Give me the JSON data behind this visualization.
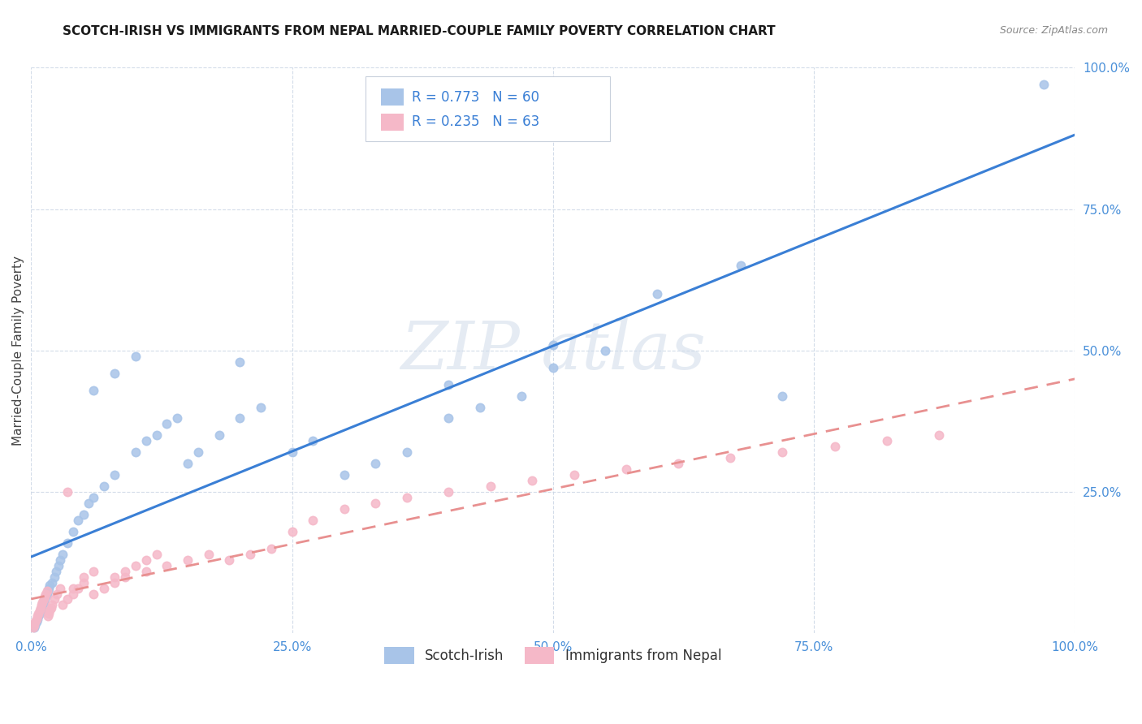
{
  "title": "SCOTCH-IRISH VS IMMIGRANTS FROM NEPAL MARRIED-COUPLE FAMILY POVERTY CORRELATION CHART",
  "source": "Source: ZipAtlas.com",
  "ylabel": "Married-Couple Family Poverty",
  "series1_color": "#a8c4e8",
  "series2_color": "#f5b8c8",
  "trendline1_color": "#3a7fd5",
  "trendline2_color": "#e89090",
  "legend1_text": "R = 0.773   N = 60",
  "legend2_text": "R = 0.235   N = 63",
  "label1": "Scotch-Irish",
  "label2": "Immigrants from Nepal",
  "scotch_irish_x": [
    0.3,
    0.4,
    0.5,
    0.6,
    0.7,
    0.8,
    0.9,
    1.0,
    1.1,
    1.2,
    1.3,
    1.4,
    1.5,
    1.6,
    1.7,
    1.8,
    2.0,
    2.2,
    2.4,
    2.6,
    2.8,
    3.0,
    3.5,
    4.0,
    4.5,
    5.0,
    5.5,
    6.0,
    7.0,
    8.0,
    10.0,
    11.0,
    12.0,
    13.0,
    14.0,
    15.0,
    16.0,
    18.0,
    20.0,
    22.0,
    25.0,
    27.0,
    30.0,
    33.0,
    36.0,
    40.0,
    43.0,
    47.0,
    50.0,
    55.0,
    60.0,
    68.0,
    97.0,
    6.0,
    8.0,
    10.0,
    20.0,
    40.0,
    50.0,
    72.0
  ],
  "scotch_irish_y": [
    1.0,
    1.5,
    2.0,
    2.5,
    3.0,
    3.5,
    4.0,
    4.5,
    5.0,
    5.5,
    6.0,
    6.5,
    7.0,
    7.5,
    8.0,
    8.5,
    9.0,
    10.0,
    11.0,
    12.0,
    13.0,
    14.0,
    16.0,
    18.0,
    20.0,
    21.0,
    23.0,
    24.0,
    26.0,
    28.0,
    32.0,
    34.0,
    35.0,
    37.0,
    38.0,
    30.0,
    32.0,
    35.0,
    38.0,
    40.0,
    32.0,
    34.0,
    28.0,
    30.0,
    32.0,
    38.0,
    40.0,
    42.0,
    47.0,
    50.0,
    60.0,
    65.0,
    97.0,
    43.0,
    46.0,
    49.0,
    48.0,
    44.0,
    51.0,
    42.0
  ],
  "nepal_x": [
    0.2,
    0.3,
    0.4,
    0.5,
    0.6,
    0.7,
    0.8,
    0.9,
    1.0,
    1.1,
    1.2,
    1.3,
    1.4,
    1.5,
    1.6,
    1.7,
    1.8,
    1.9,
    2.0,
    2.2,
    2.5,
    2.8,
    3.0,
    3.5,
    4.0,
    4.5,
    5.0,
    6.0,
    7.0,
    8.0,
    9.0,
    11.0,
    13.0,
    15.0,
    17.0,
    19.0,
    21.0,
    23.0,
    25.0,
    27.0,
    30.0,
    33.0,
    36.0,
    40.0,
    44.0,
    48.0,
    52.0,
    57.0,
    62.0,
    67.0,
    72.0,
    77.0,
    82.0,
    87.0,
    3.5,
    4.0,
    5.0,
    6.0,
    8.0,
    9.0,
    10.0,
    11.0,
    12.0
  ],
  "nepal_y": [
    1.0,
    1.5,
    2.0,
    2.5,
    3.0,
    3.5,
    4.0,
    4.5,
    5.0,
    5.5,
    6.0,
    6.5,
    7.0,
    7.5,
    3.0,
    3.5,
    4.0,
    4.5,
    5.0,
    6.0,
    7.0,
    8.0,
    5.0,
    6.0,
    7.0,
    8.0,
    9.0,
    7.0,
    8.0,
    9.0,
    10.0,
    11.0,
    12.0,
    13.0,
    14.0,
    13.0,
    14.0,
    15.0,
    18.0,
    20.0,
    22.0,
    23.0,
    24.0,
    25.0,
    26.0,
    27.0,
    28.0,
    29.0,
    30.0,
    31.0,
    32.0,
    33.0,
    34.0,
    35.0,
    25.0,
    8.0,
    10.0,
    11.0,
    10.0,
    11.0,
    12.0,
    13.0,
    14.0
  ]
}
